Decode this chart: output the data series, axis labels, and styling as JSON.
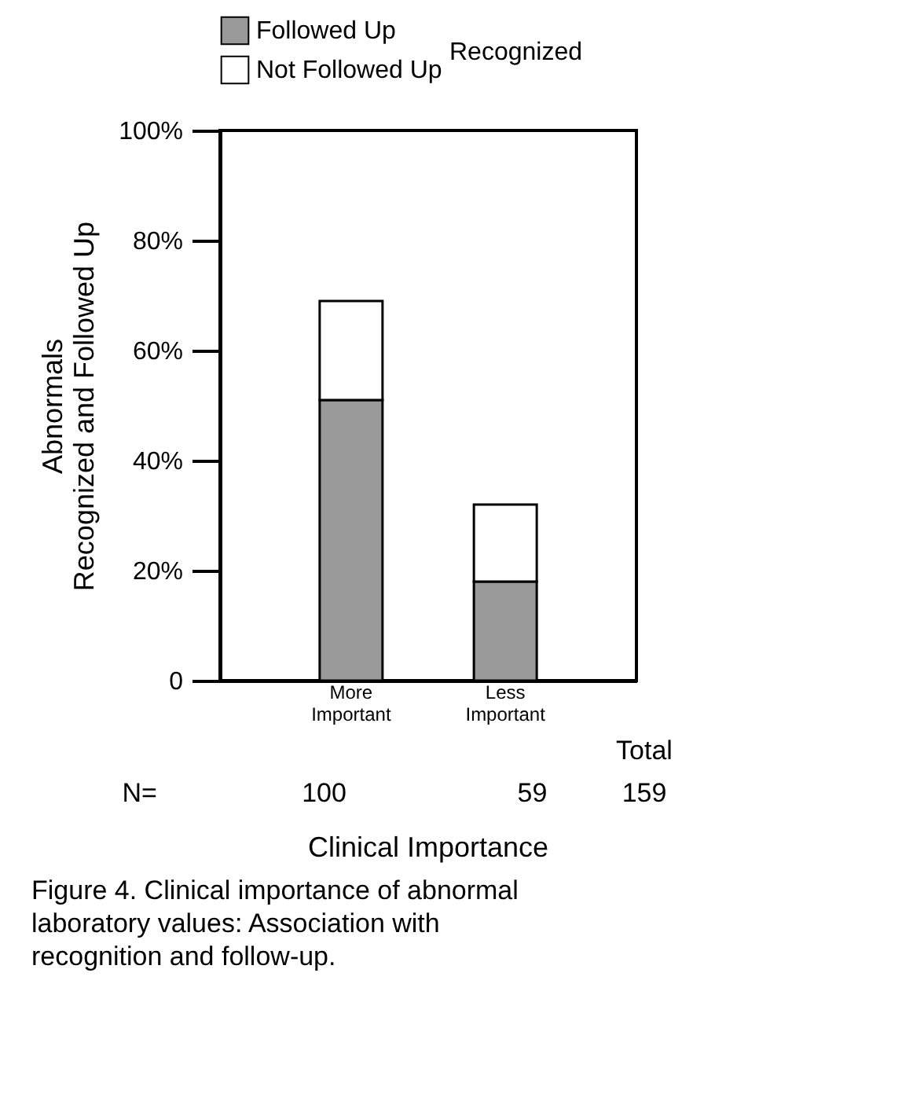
{
  "chart_data": {
    "type": "bar",
    "stacked": true,
    "categories": [
      "More Important",
      "Less Important"
    ],
    "series": [
      {
        "name": "Followed Up",
        "color": "#9a9a9a",
        "values": [
          51,
          18
        ]
      },
      {
        "name": "Not Followed Up",
        "color": "#ffffff",
        "values": [
          18,
          14
        ]
      }
    ],
    "legend_title": "Recognized",
    "legend": "top",
    "xlabel": "Clinical Importance",
    "ylabel": "Abnormals\nRecognized and Followed Up",
    "ylim": [
      0,
      100
    ],
    "yticks": [
      0,
      {
        "value": 20,
        "label": "20%"
      },
      {
        "value": 40,
        "label": "40%"
      },
      {
        "value": 60,
        "label": "60%"
      },
      {
        "value": 80,
        "label": "80%"
      },
      {
        "value": 100,
        "label": "100%"
      }
    ],
    "grid": false,
    "annotations": [
      "N=",
      "100",
      "59",
      "Total",
      "159",
      "Figure 4. Clinical importance of abnormal laboratory values: Association with recognition and follow-up."
    ]
  }
}
